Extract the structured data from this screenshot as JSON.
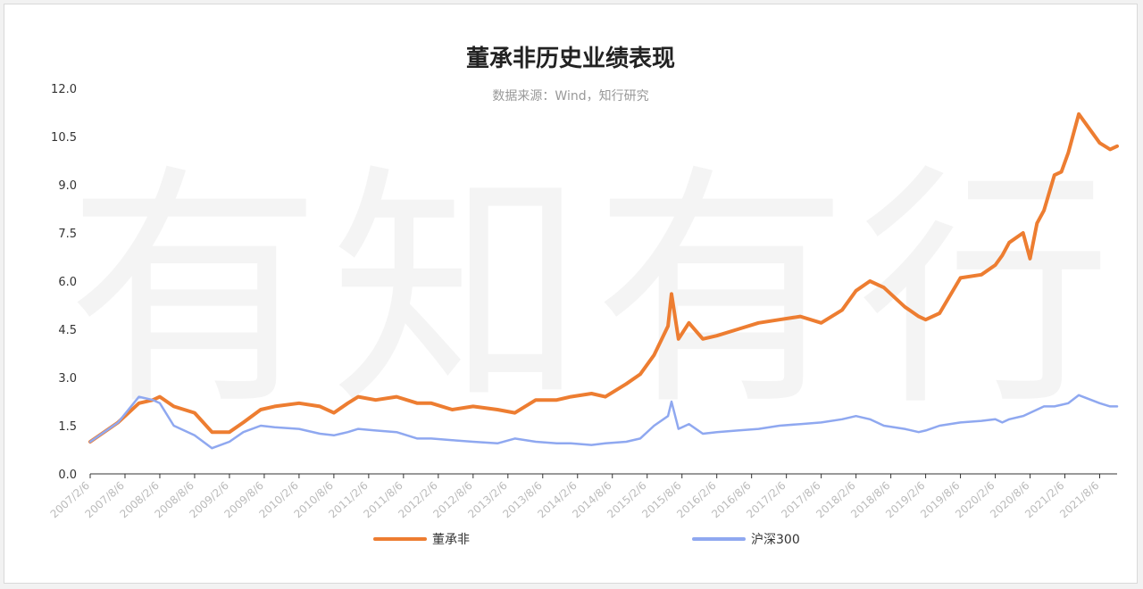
{
  "chart_data": {
    "type": "line",
    "title": "董承非历史业绩表现",
    "subtitle": "数据来源：Wind，知行研究",
    "watermark": "有知有行",
    "ylim": [
      0,
      12
    ],
    "yticks": [
      "0.0",
      "1.5",
      "3.0",
      "4.5",
      "6.0",
      "7.5",
      "9.0",
      "10.5",
      "12.0"
    ],
    "xticks": [
      "2007/2/6",
      "2007/8/6",
      "2008/2/6",
      "2008/8/6",
      "2009/2/6",
      "2009/8/6",
      "2010/2/6",
      "2010/8/6",
      "2011/2/6",
      "2011/8/6",
      "2012/2/6",
      "2012/8/6",
      "2013/2/6",
      "2013/8/6",
      "2014/2/6",
      "2014/8/6",
      "2015/2/6",
      "2015/8/6",
      "2016/2/6",
      "2016/8/6",
      "2017/2/6",
      "2017/8/6",
      "2018/2/6",
      "2018/8/6",
      "2019/2/6",
      "2019/8/6",
      "2020/2/6",
      "2020/8/6",
      "2021/2/6",
      "2021/8/6"
    ],
    "x": [
      2007.1,
      2007.5,
      2007.8,
      2008.0,
      2008.1,
      2008.3,
      2008.6,
      2008.85,
      2009.1,
      2009.3,
      2009.55,
      2009.75,
      2010.1,
      2010.4,
      2010.6,
      2010.8,
      2010.95,
      2011.2,
      2011.5,
      2011.8,
      2012.0,
      2012.3,
      2012.6,
      2012.95,
      2013.2,
      2013.5,
      2013.8,
      2014.0,
      2014.3,
      2014.5,
      2014.8,
      2015.0,
      2015.2,
      2015.4,
      2015.45,
      2015.55,
      2015.7,
      2015.9,
      2016.1,
      2016.4,
      2016.7,
      2017.0,
      2017.3,
      2017.6,
      2017.9,
      2018.1,
      2018.3,
      2018.5,
      2018.8,
      2019.0,
      2019.1,
      2019.3,
      2019.6,
      2019.9,
      2020.1,
      2020.2,
      2020.3,
      2020.5,
      2020.6,
      2020.7,
      2020.8,
      2020.95,
      2021.05,
      2021.15,
      2021.3,
      2021.6,
      2021.75,
      2021.85
    ],
    "series": [
      {
        "name": "董承非",
        "color": "#ed7d31",
        "values": [
          1.0,
          1.6,
          2.2,
          2.3,
          2.4,
          2.1,
          1.9,
          1.3,
          1.3,
          1.6,
          2.0,
          2.1,
          2.2,
          2.1,
          1.9,
          2.2,
          2.4,
          2.3,
          2.4,
          2.2,
          2.2,
          2.0,
          2.1,
          2.0,
          1.9,
          2.3,
          2.3,
          2.4,
          2.5,
          2.4,
          2.8,
          3.1,
          3.7,
          4.6,
          5.6,
          4.2,
          4.7,
          4.2,
          4.3,
          4.5,
          4.7,
          4.8,
          4.9,
          4.7,
          5.1,
          5.7,
          6.0,
          5.8,
          5.2,
          4.9,
          4.8,
          5.0,
          6.1,
          6.2,
          6.5,
          6.8,
          7.2,
          7.5,
          6.7,
          7.8,
          8.2,
          9.3,
          9.4,
          10.0,
          11.2,
          10.3,
          10.1,
          10.2
        ]
      },
      {
        "name": "沪深300",
        "color": "#8fa8f0",
        "values": [
          1.0,
          1.6,
          2.4,
          2.3,
          2.2,
          1.5,
          1.2,
          0.8,
          1.0,
          1.3,
          1.5,
          1.45,
          1.4,
          1.25,
          1.2,
          1.3,
          1.4,
          1.35,
          1.3,
          1.1,
          1.1,
          1.05,
          1.0,
          0.95,
          1.1,
          1.0,
          0.95,
          0.95,
          0.9,
          0.95,
          1.0,
          1.1,
          1.5,
          1.8,
          2.25,
          1.4,
          1.55,
          1.25,
          1.3,
          1.35,
          1.4,
          1.5,
          1.55,
          1.6,
          1.7,
          1.8,
          1.7,
          1.5,
          1.4,
          1.3,
          1.35,
          1.5,
          1.6,
          1.65,
          1.7,
          1.6,
          1.7,
          1.8,
          1.9,
          2.0,
          2.1,
          2.1,
          2.15,
          2.2,
          2.45,
          2.2,
          2.1,
          2.1
        ]
      }
    ]
  }
}
